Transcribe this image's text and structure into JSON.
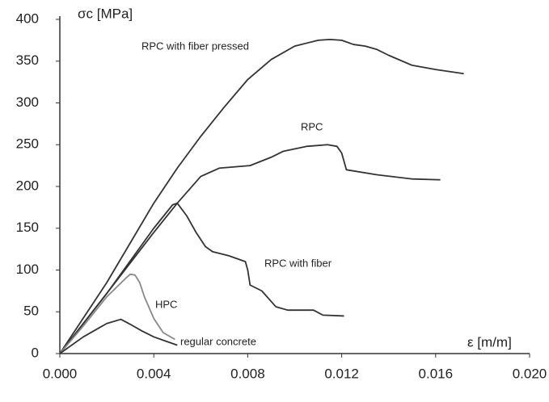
{
  "chart_data": {
    "type": "line",
    "y_label": "σc [MPa]",
    "x_label": "ε [m/m]",
    "xlim": [
      0,
      0.02
    ],
    "ylim": [
      0,
      400
    ],
    "xticks": [
      {
        "value": 0,
        "label": "0.000"
      },
      {
        "value": 0.004,
        "label": "0.004"
      },
      {
        "value": 0.008,
        "label": "0.008"
      },
      {
        "value": 0.012,
        "label": "0.012"
      },
      {
        "value": 0.016,
        "label": "0.016"
      },
      {
        "value": 0.02,
        "label": "0.020"
      }
    ],
    "yticks": [
      0,
      50,
      100,
      150,
      200,
      250,
      300,
      350,
      400
    ],
    "grid": false,
    "series": [
      {
        "name": "RPC with fiber pressed",
        "color": "#333333",
        "x": [
          0,
          0.002,
          0.004,
          0.005,
          0.006,
          0.007,
          0.008,
          0.009,
          0.01,
          0.011,
          0.0115,
          0.012,
          0.0125,
          0.013,
          0.0135,
          0.014,
          0.015,
          0.016,
          0.0172
        ],
        "values": [
          0,
          85,
          180,
          222,
          260,
          295,
          328,
          352,
          368,
          375,
          376,
          375,
          370,
          368,
          364,
          357,
          345,
          340,
          335
        ]
      },
      {
        "name": "RPC",
        "color": "#333333",
        "x": [
          0,
          0.002,
          0.004,
          0.005,
          0.006,
          0.0068,
          0.0081,
          0.009,
          0.0095,
          0.0105,
          0.0114,
          0.0118,
          0.012,
          0.0122,
          0.0135,
          0.015,
          0.0162
        ],
        "values": [
          0,
          72,
          145,
          180,
          212,
          222,
          225,
          235,
          242,
          248,
          250,
          248,
          240,
          220,
          214,
          209,
          208
        ]
      },
      {
        "name": "RPC with fiber",
        "color": "#333333",
        "x": [
          0,
          0.002,
          0.004,
          0.0048,
          0.005,
          0.0054,
          0.0058,
          0.0062,
          0.0065,
          0.0072,
          0.0079,
          0.008,
          0.0081,
          0.0086,
          0.0092,
          0.0097,
          0.0108,
          0.0112,
          0.0121
        ],
        "values": [
          0,
          72,
          150,
          178,
          180,
          165,
          145,
          128,
          122,
          117,
          110,
          100,
          82,
          75,
          56,
          52,
          52,
          46,
          45
        ]
      },
      {
        "name": "HPC",
        "color": "#888888",
        "x": [
          0,
          0.001,
          0.002,
          0.0028,
          0.003,
          0.0032,
          0.0034,
          0.0036,
          0.004,
          0.0044,
          0.0049
        ],
        "values": [
          0,
          33,
          68,
          90,
          95,
          94,
          85,
          68,
          42,
          25,
          17
        ]
      },
      {
        "name": "regular concrete",
        "color": "#333333",
        "x": [
          0,
          0.001,
          0.002,
          0.0026,
          0.003,
          0.0035,
          0.004,
          0.0045,
          0.005
        ],
        "values": [
          0,
          20,
          36,
          41,
          35,
          27,
          20,
          15,
          10
        ]
      }
    ]
  }
}
